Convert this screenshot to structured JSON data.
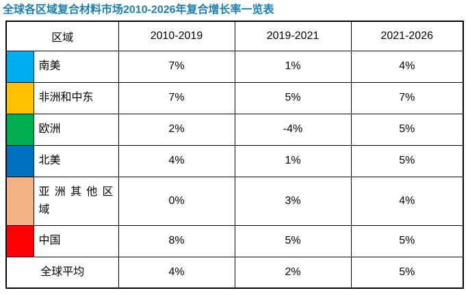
{
  "page": {
    "title": "全球各区域复合材料市场2010-2026年复合增长率一览表"
  },
  "colors": {
    "title_text": "#1B7EB3",
    "border": "#000000",
    "background": "#FFFFFF",
    "cell_text": "#000000"
  },
  "table": {
    "columns": [
      "区域",
      "2010-2019",
      "2019-2021",
      "2021-2026"
    ],
    "rows": [
      {
        "region": "南美",
        "color": "#00AEEF",
        "values": [
          "7%",
          "1%",
          "4%"
        ]
      },
      {
        "region": "非洲和中东",
        "color": "#FFC000",
        "values": [
          "7%",
          "5%",
          "7%"
        ]
      },
      {
        "region": "欧洲",
        "color": "#00AD50",
        "values": [
          "2%",
          "-4%",
          "5%"
        ]
      },
      {
        "region": "北美",
        "color": "#0070C0",
        "values": [
          "4%",
          "1%",
          "5%"
        ]
      },
      {
        "region": "亚洲其他区\n域",
        "color": "#F4B183",
        "values": [
          "0%",
          "3%",
          "4%"
        ]
      },
      {
        "region": "中国",
        "color": "#FF0000",
        "values": [
          "8%",
          "5%",
          "5%"
        ]
      }
    ],
    "footer": {
      "label": "全球平均",
      "values": [
        "4%",
        "2%",
        "5%"
      ]
    }
  },
  "chart_data": {
    "type": "table",
    "title": "全球各区域复合材料市场2010-2026年复合增长率一览表",
    "columns": [
      "区域",
      "2010-2019",
      "2019-2021",
      "2021-2026"
    ],
    "rows": [
      [
        "南美",
        "7%",
        "1%",
        "4%"
      ],
      [
        "非洲和中东",
        "7%",
        "5%",
        "7%"
      ],
      [
        "欧洲",
        "2%",
        "-4%",
        "5%"
      ],
      [
        "北美",
        "4%",
        "1%",
        "5%"
      ],
      [
        "亚洲其他区域",
        "0%",
        "3%",
        "4%"
      ],
      [
        "中国",
        "8%",
        "5%",
        "5%"
      ],
      [
        "全球平均",
        "4%",
        "2%",
        "5%"
      ]
    ],
    "row_swatch_colors": [
      "#00AEEF",
      "#FFC000",
      "#00AD50",
      "#0070C0",
      "#F4B183",
      "#FF0000",
      null
    ],
    "values_numeric_percent": {
      "南美": [
        7,
        1,
        4
      ],
      "非洲和中东": [
        7,
        5,
        7
      ],
      "欧洲": [
        2,
        -4,
        5
      ],
      "北美": [
        4,
        1,
        5
      ],
      "亚洲其他区域": [
        0,
        3,
        4
      ],
      "中国": [
        8,
        5,
        5
      ],
      "全球平均": [
        4,
        2,
        5
      ]
    }
  }
}
